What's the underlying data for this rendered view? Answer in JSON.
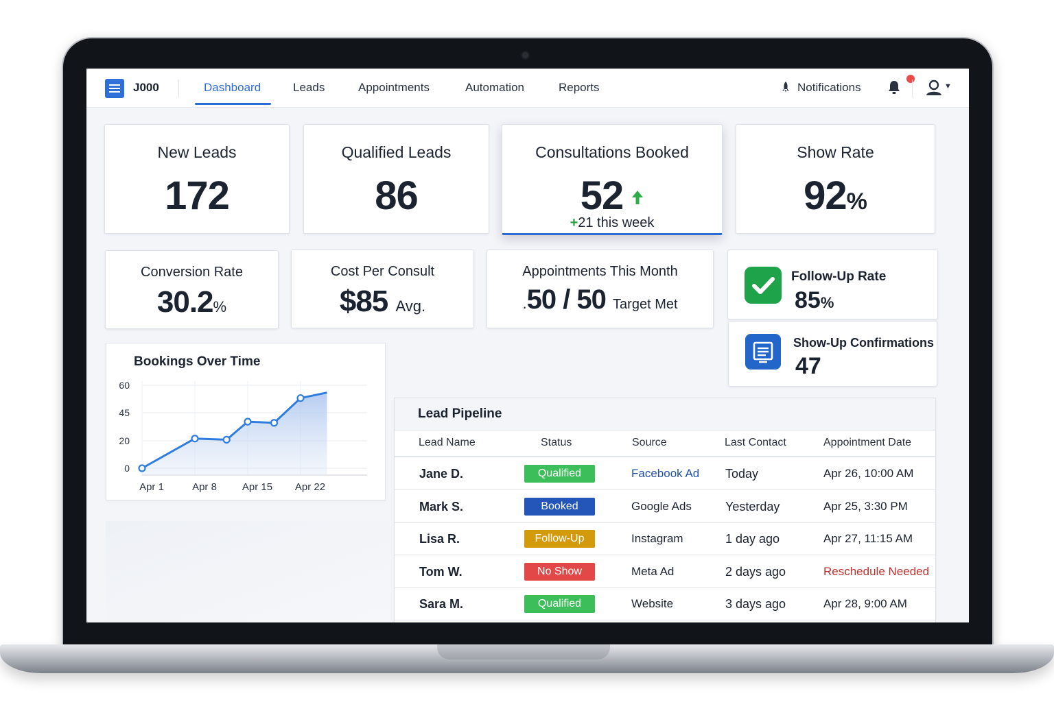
{
  "nav": {
    "logo": "J000",
    "tabs": [
      "Dashboard",
      "Leads",
      "Appointments",
      "Automation",
      "Reports"
    ],
    "notifications_label": "Notifications"
  },
  "kpis": [
    {
      "label": "New Leads",
      "value": "172"
    },
    {
      "label": "Qualified Leads",
      "value": "86"
    },
    {
      "label": "Consultations Booked",
      "value": "52",
      "delta_plus": "+",
      "delta_text": "21 this week"
    },
    {
      "label": "Show Rate",
      "value": "92",
      "unit": "%"
    }
  ],
  "metrics": [
    {
      "label": "Conversion Rate",
      "value": "30.2",
      "unit": "%"
    },
    {
      "label": "Cost Per Consult",
      "value": "$85",
      "suffix": "Avg."
    },
    {
      "label": "Appointments This Month",
      "prefix": ".",
      "value": "50 / 50",
      "suffix": "Target Met"
    }
  ],
  "side": {
    "follow_up": {
      "label": "Follow-Up Rate",
      "value": "85",
      "unit": "%",
      "icon": "check-icon",
      "color": "#1fa34a"
    },
    "confirmations": {
      "label": "Show-Up Confirmations",
      "value": "47",
      "icon": "document-icon",
      "color": "#2366c9"
    }
  },
  "chart_data": {
    "type": "line",
    "title": "Bookings Over Time",
    "x_ticks": [
      "Apr 1",
      "Apr 8",
      "Apr 15",
      "Apr 22"
    ],
    "y_ticks": [
      "0",
      "20",
      "45",
      "60"
    ],
    "points": [
      {
        "x": 0,
        "y": 0
      },
      {
        "x": 1,
        "y": 22
      },
      {
        "x": 1.6,
        "y": 21
      },
      {
        "x": 2,
        "y": 37
      },
      {
        "x": 2.5,
        "y": 36
      },
      {
        "x": 3,
        "y": 53
      }
    ],
    "end_point": {
      "x": 3.5,
      "y": 56
    },
    "grid": true,
    "color": "#2f7de0"
  },
  "pipeline": {
    "title": "Lead Pipeline",
    "columns": [
      "Lead Name",
      "Status",
      "Source",
      "Last Contact",
      "Appointment Date"
    ],
    "rows": [
      {
        "name": "Jane D.",
        "status": "Qualified",
        "status_color": "#3cbf5a",
        "source": "Facebook Ad",
        "source_color": "#1f4fa8",
        "contact": "Today",
        "appt": "Apr 26, 10:00 AM",
        "appt_color": "#1c2330"
      },
      {
        "name": "Mark S.",
        "status": "Booked",
        "status_color": "#2356b8",
        "source": "Google Ads",
        "source_color": "#1c2330",
        "contact": "Yesterday",
        "appt": "Apr 25, 3:30 PM",
        "appt_color": "#1c2330"
      },
      {
        "name": "Lisa R.",
        "status": "Follow-Up",
        "status_color": "#d39a0c",
        "source": "Instagram",
        "source_color": "#1c2330",
        "contact": "1 day ago",
        "appt": "Apr 27, 11:15 AM",
        "appt_color": "#1c2330"
      },
      {
        "name": "Tom W.",
        "status": "No Show",
        "status_color": "#e24848",
        "source": "Meta Ad",
        "source_color": "#1c2330",
        "contact": "2 days ago",
        "appt": "Reschedule Needed",
        "appt_color": "#c0302c"
      },
      {
        "name": "Sara M.",
        "status": "Qualified",
        "status_color": "#3cbf5a",
        "source": "Website",
        "source_color": "#1c2330",
        "contact": "3 days ago",
        "appt": "Apr 28, 9:00 AM",
        "appt_color": "#1c2330"
      }
    ]
  }
}
